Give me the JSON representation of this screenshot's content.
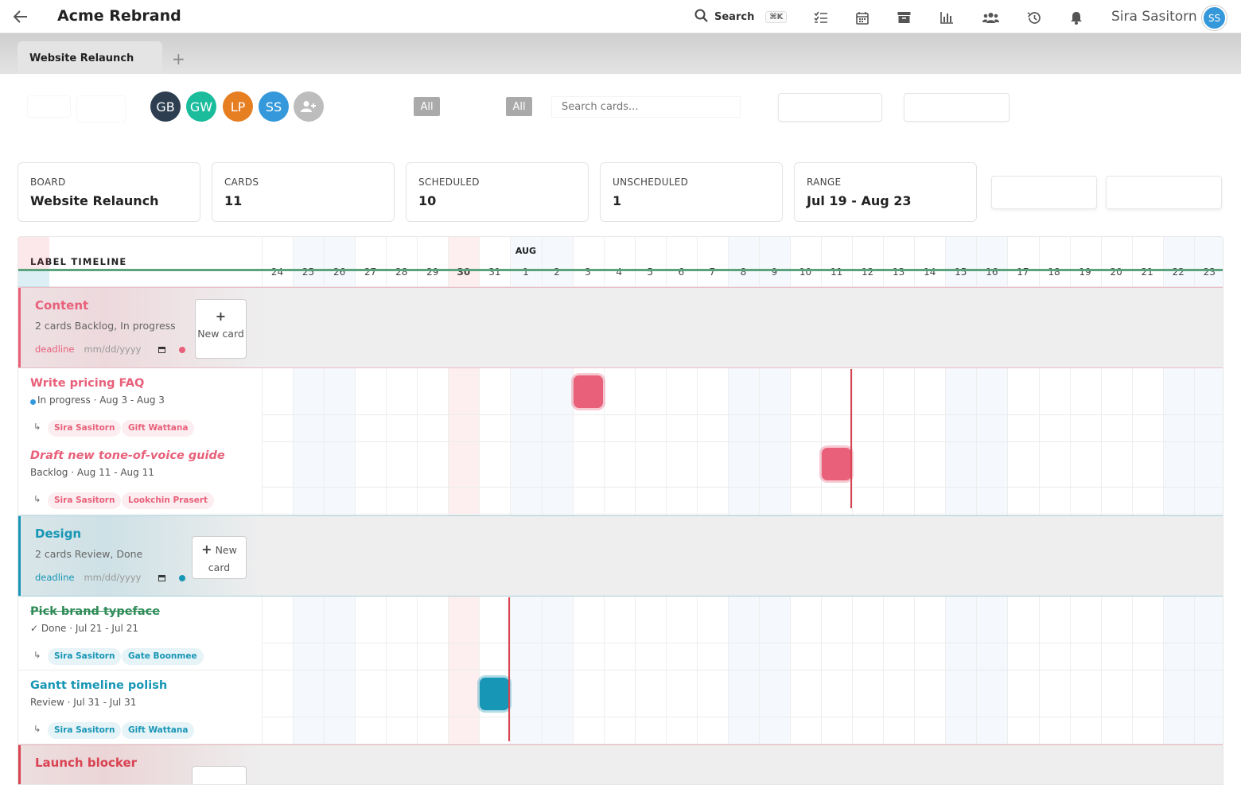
{
  "app": {
    "title": "Acme Rebrand",
    "search_label": "Search",
    "search_kbd": "⌘K",
    "user_name": "Sira Sasitorn",
    "user_initials": "SS"
  },
  "tabs": [
    {
      "label": "Website Relaunch"
    }
  ],
  "tab_add": "+",
  "members": [
    {
      "initials": "GB",
      "color": "#2c3e50"
    },
    {
      "initials": "GW",
      "color": "#1abc9c"
    },
    {
      "initials": "LP",
      "color": "#e67e22"
    },
    {
      "initials": "SS",
      "color": "#3498db"
    }
  ],
  "filters": {
    "pill1": "All",
    "pill2": "All",
    "search_placeholder": "Search cards..."
  },
  "stats": [
    {
      "key": "BOARD",
      "value": "Website Relaunch"
    },
    {
      "key": "CARDS",
      "value": "11"
    },
    {
      "key": "SCHEDULED",
      "value": "10"
    },
    {
      "key": "UNSCHEDULED",
      "value": "1"
    },
    {
      "key": "RANGE",
      "value": "Jul 19 - Aug 23"
    }
  ],
  "timeline": {
    "heading": "LABEL TIMELINE",
    "month_label": "AUG",
    "days": [
      "24",
      "25",
      "26",
      "27",
      "28",
      "29",
      "30",
      "31",
      "1",
      "2",
      "3",
      "4",
      "5",
      "6",
      "7",
      "8",
      "9",
      "10",
      "11",
      "12",
      "13",
      "14",
      "15",
      "16",
      "17",
      "18",
      "19",
      "20",
      "21",
      "22",
      "23"
    ],
    "weekend_days": [
      "25",
      "26",
      "1",
      "2",
      "8",
      "9",
      "15",
      "16",
      "22",
      "23"
    ],
    "highlight_day": "30",
    "today_marker_day": "11"
  },
  "lanes": [
    {
      "name": "Content",
      "meta": "2 cards   Backlog, In progress",
      "deadline_label": "deadline",
      "deadline_placeholder": "mm/dd/yyyy",
      "new_card": "New card",
      "color": "#e8607a",
      "tasks": [
        {
          "name": "Write pricing FAQ",
          "meta": "In progress · Aug 3 - Aug 3",
          "status_dot": "#3498db",
          "tags": [
            "Sira Sasitorn",
            "Gift Wattana"
          ],
          "start": "3",
          "end": "3",
          "italic": false,
          "done": false
        },
        {
          "name": "Draft new tone-of-voice guide",
          "meta": "Backlog · Aug 11 - Aug 11",
          "status_dot": "",
          "tags": [
            "Sira Sasitorn",
            "Lookchin Prasert"
          ],
          "start": "11",
          "end": "11",
          "italic": true,
          "done": false
        }
      ]
    },
    {
      "name": "Design",
      "meta": "2 cards   Review, Done",
      "deadline_label": "deadline",
      "deadline_placeholder": "mm/dd/yyyy",
      "new_card": "New card",
      "color": "#1796b5",
      "tasks": [
        {
          "name": "Pick brand typeface",
          "meta": "✓ Done · Jul 21 - Jul 21",
          "status_dot": "",
          "tags": [
            "Sira Sasitorn",
            "Gate Boonmee"
          ],
          "start": "",
          "end": "",
          "italic": false,
          "done": true
        },
        {
          "name": "Gantt timeline polish",
          "meta": "Review · Jul 31 - Jul 31",
          "status_dot": "",
          "tags": [
            "Sira Sasitorn",
            "Gift Wattana"
          ],
          "start": "31",
          "end": "31",
          "italic": false,
          "done": false
        }
      ]
    },
    {
      "name": "Launch blocker",
      "meta": "",
      "deadline_label": "",
      "deadline_placeholder": "",
      "new_card": "",
      "color": "#d94352",
      "tasks": []
    }
  ]
}
